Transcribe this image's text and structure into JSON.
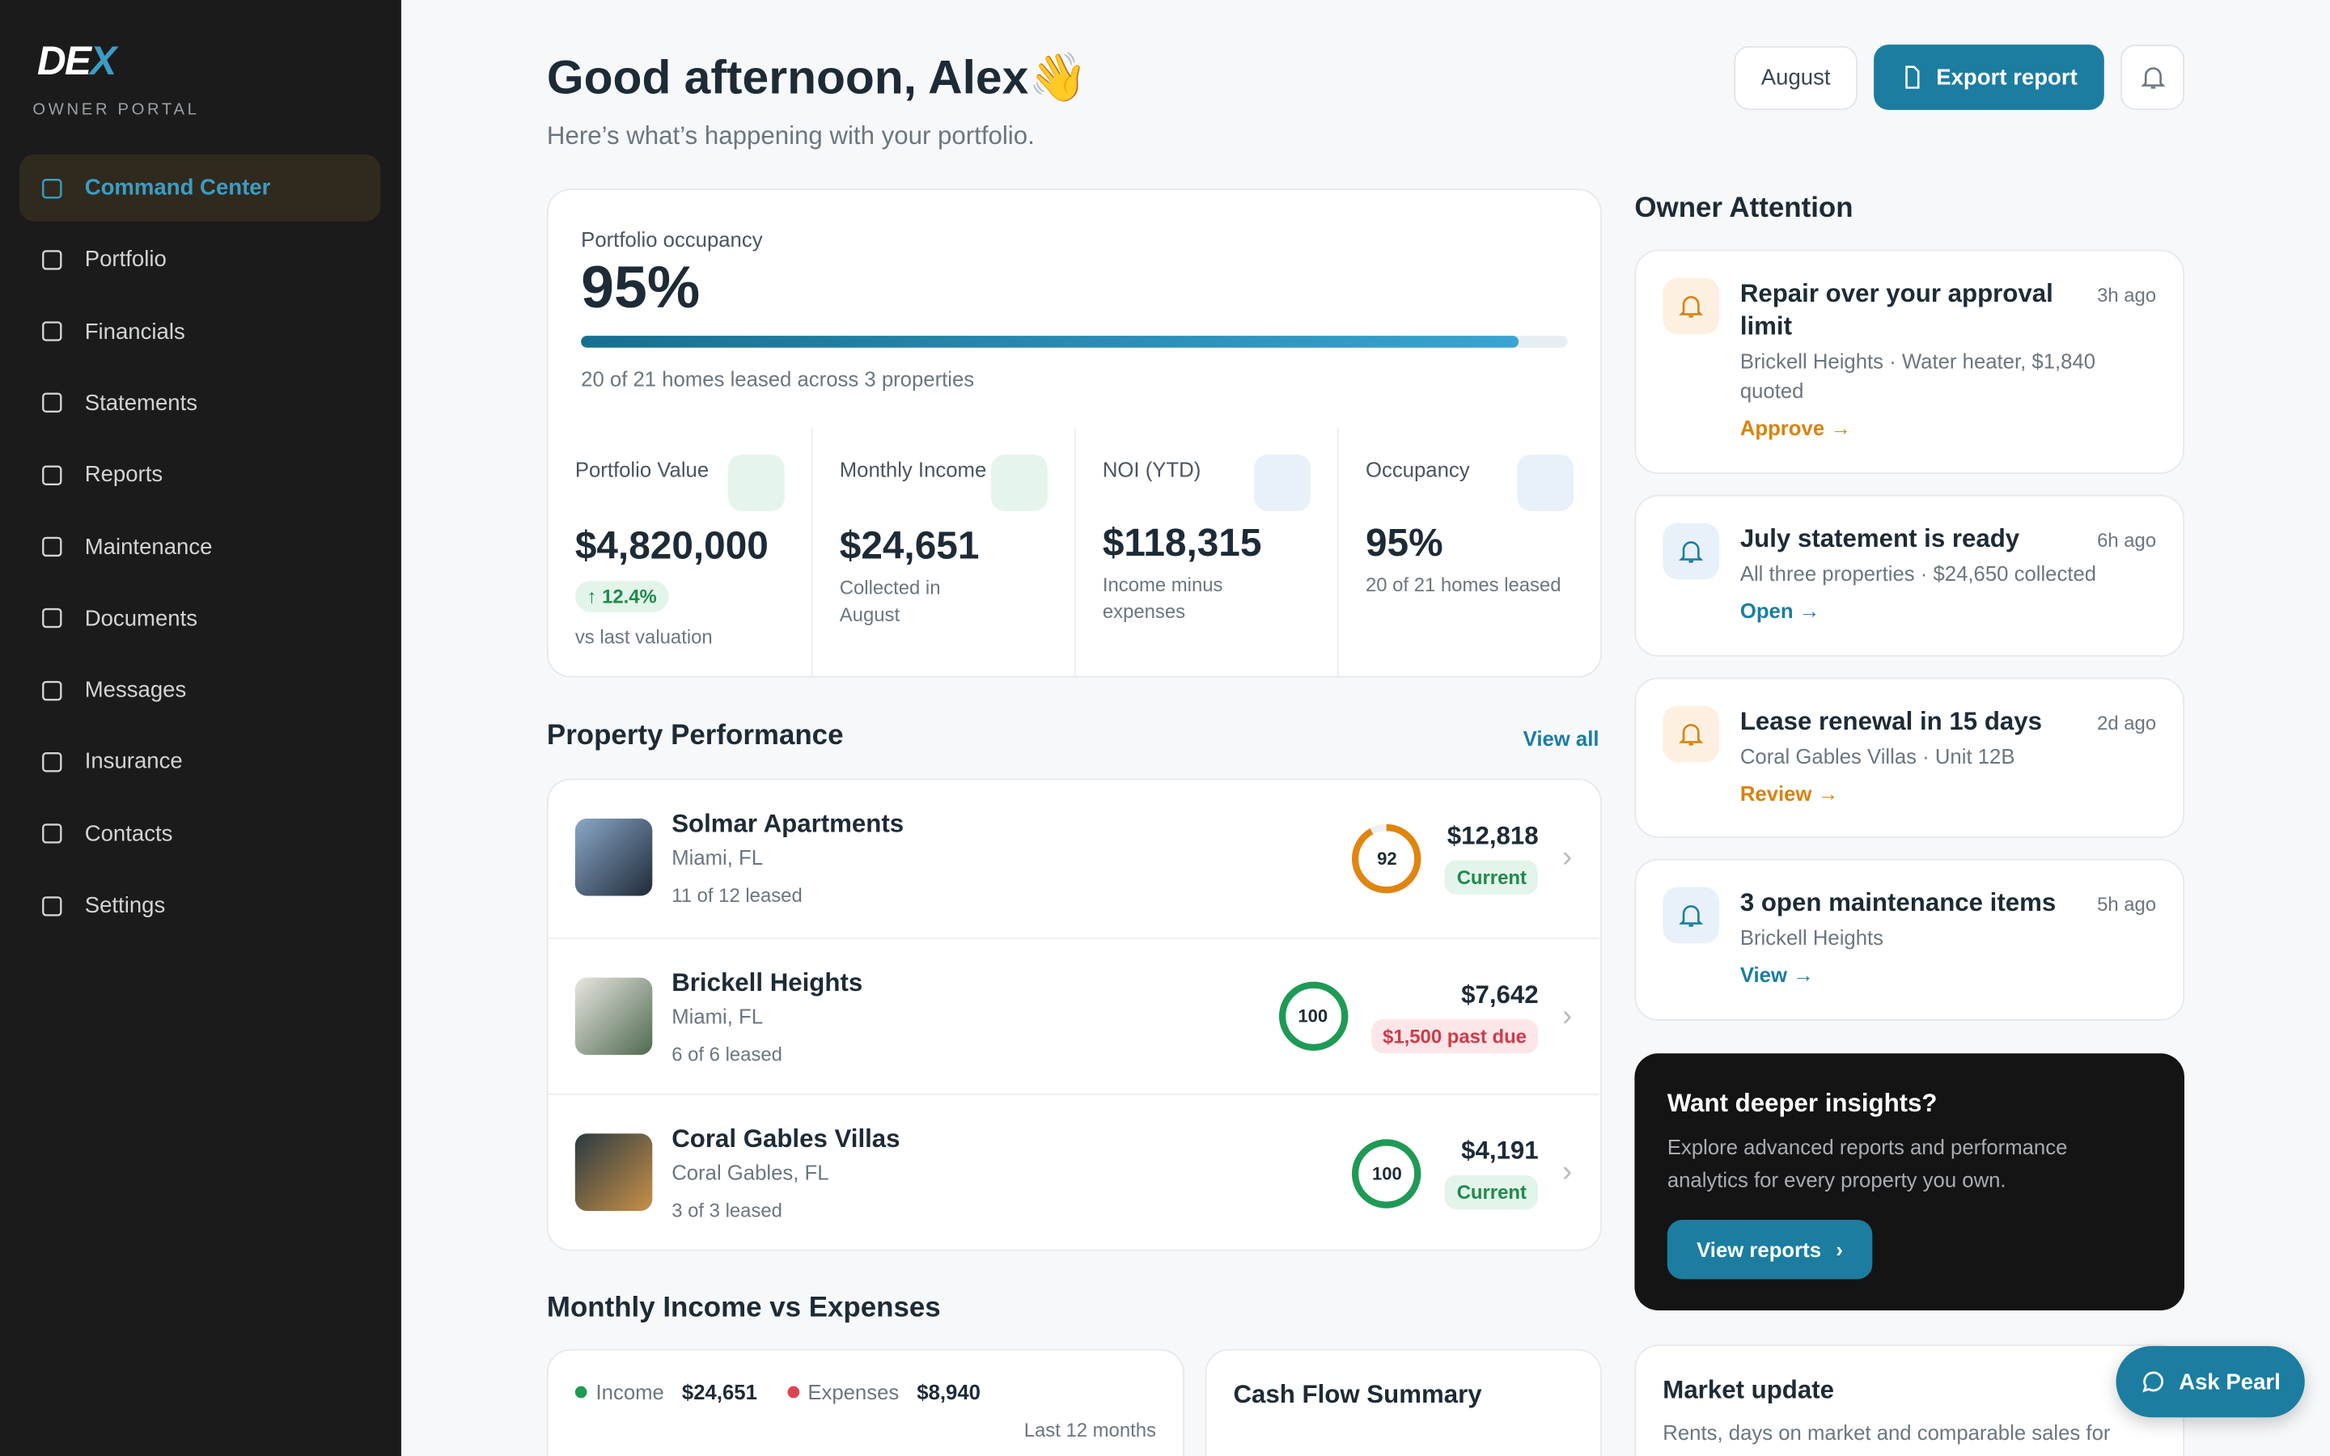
{
  "sidebar": {
    "logo": "DE",
    "logo_accent": "X",
    "subtitle": "OWNER PORTAL",
    "active": 0,
    "nav": [
      "Command Center",
      "Portfolio",
      "Financials",
      "Statements",
      "Reports",
      "Maintenance",
      "Documents",
      "Messages",
      "Insurance",
      "Contacts",
      "Settings"
    ]
  },
  "header": {
    "greeting": "Good afternoon, Alex👋",
    "subtitle": "Here’s what’s happening with your portfolio.",
    "month": "August",
    "export": "Export report"
  },
  "occupancy": {
    "label": "Portfolio occupancy",
    "value": 95,
    "value_label": "95%",
    "note": "20 of 21 homes leased across 3 properties"
  },
  "stats": [
    {
      "label": "Portfolio Value",
      "value": "$4,820,000",
      "badge": "↑ 12.4%",
      "note": "vs last valuation"
    },
    {
      "label": "Monthly Income",
      "value": "$24,651",
      "note": "Collected in August"
    },
    {
      "label": "NOI (YTD)",
      "value": "$118,315",
      "note": "Income minus expenses"
    },
    {
      "label": "Occupancy",
      "value": "95%",
      "note": "20 of 21 homes leased"
    }
  ],
  "performance": {
    "title": "Property Performance",
    "view_all": "View all",
    "properties": [
      {
        "name": "Solmar Apartments",
        "location": "Miami, FL",
        "leased": "11 of 12 leased",
        "score": 92,
        "amount": "$12,818",
        "status": "Current",
        "tone": "ok"
      },
      {
        "name": "Brickell Heights",
        "location": "Miami, FL",
        "leased": "6 of 6 leased",
        "score": 100,
        "amount": "$7,642",
        "status": "$1,500 past due",
        "tone": "due"
      },
      {
        "name": "Coral Gables Villas",
        "location": "Coral Gables, FL",
        "leased": "3 of 3 leased",
        "score": 100,
        "amount": "$4,191",
        "status": "Current",
        "tone": "ok"
      }
    ]
  },
  "income": {
    "title": "Monthly Income vs Expenses",
    "income_label": "Income",
    "income": "$24,651",
    "expenses_label": "Expenses",
    "expenses": "$8,940",
    "period": "Last 12 months",
    "cash_flow_title": "Cash Flow Summary"
  },
  "attention": {
    "title": "Owner Attention",
    "items": [
      {
        "title": "Repair over your approval limit",
        "time": "3h ago",
        "detail": "Brickell Heights · Water heater, $1,840 quoted",
        "action": "Approve →",
        "tone": "warning"
      },
      {
        "title": "July statement is ready",
        "time": "6h ago",
        "detail": "All three properties · $24,650 collected",
        "action": "Open →",
        "tone": "info"
      },
      {
        "title": "Lease renewal in 15 days",
        "time": "2d ago",
        "detail": "Coral Gables Villas · Unit 12B",
        "action": "Review →",
        "tone": "warning"
      },
      {
        "title": "3 open maintenance items",
        "time": "5h ago",
        "detail": "Brickell Heights",
        "action": "View →",
        "tone": "info"
      }
    ]
  },
  "insights": {
    "title": "Want deeper insights?",
    "text": "Explore advanced reports and performance analytics for every property you own.",
    "button": "View reports"
  },
  "market": {
    "title": "Market update",
    "text": "Rents, days on market and comparable sales for"
  },
  "ask": "Ask Pearl"
}
